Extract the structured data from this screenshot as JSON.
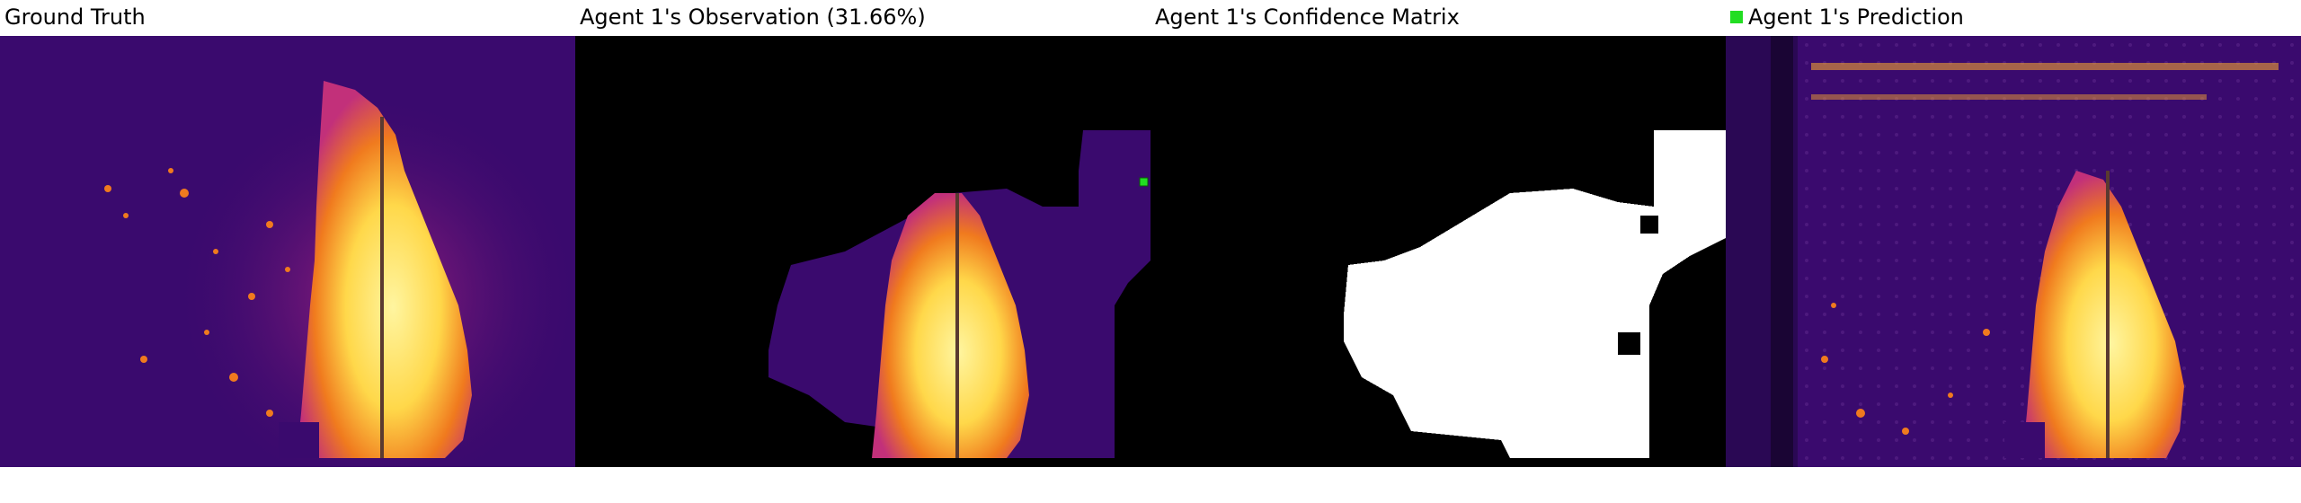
{
  "panels": [
    {
      "title": "Ground Truth"
    },
    {
      "title": "Agent 1's Observation (31.66%)"
    },
    {
      "title": "Agent 1's Confidence Matrix"
    },
    {
      "title": "Agent 1's Prediction",
      "legend_marker_color": "#22dd22"
    }
  ],
  "colors": {
    "background": "#3a0a6e",
    "mask_black": "#000000",
    "mask_white": "#ffffff",
    "fire_hot": "#ffd84a",
    "fire_mid": "#f07a1e",
    "fire_warm": "#c2307a",
    "agent_marker": "#22dd22"
  }
}
